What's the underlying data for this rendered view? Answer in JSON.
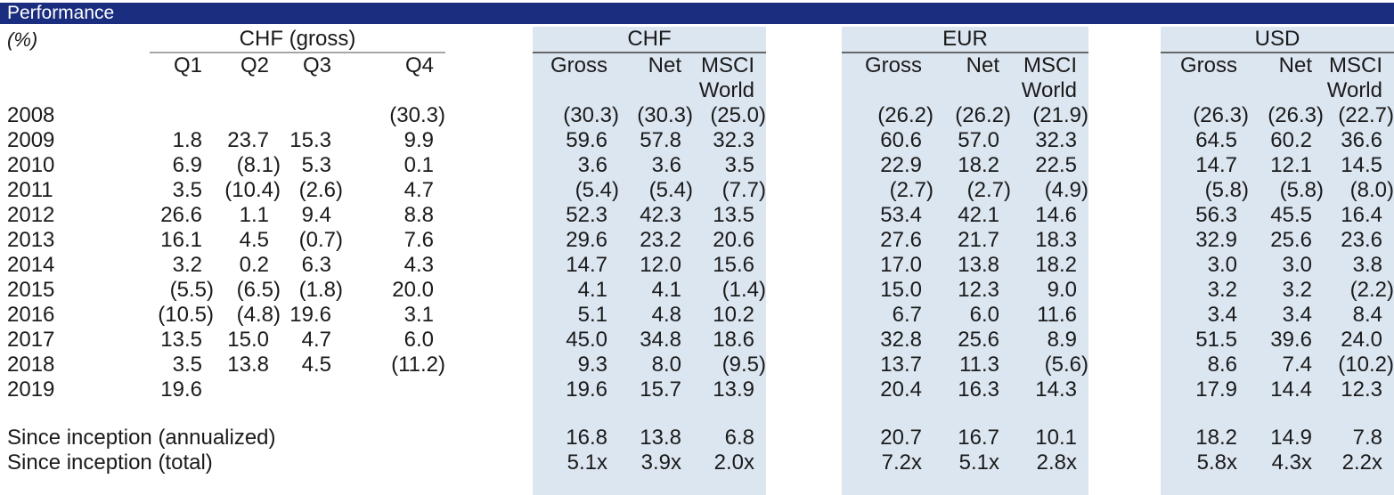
{
  "header": {
    "title": "Performance"
  },
  "unit_label": "(%)",
  "colors": {
    "header_bar": "#1b2d7f",
    "block_fill": "#dce6f1",
    "text": "#1a1a1a"
  },
  "quarterly": {
    "title": "CHF (gross)",
    "columns": [
      "Q1",
      "Q2",
      "Q3",
      "Q4"
    ],
    "rows": [
      {
        "label": "2008",
        "values": [
          "",
          "",
          "",
          "(30.3)"
        ]
      },
      {
        "label": "2009",
        "values": [
          "1.8",
          "23.7",
          "15.3",
          "9.9"
        ]
      },
      {
        "label": "2010",
        "values": [
          "6.9",
          "(8.1)",
          "5.3",
          "0.1"
        ]
      },
      {
        "label": "2011",
        "values": [
          "3.5",
          "(10.4)",
          "(2.6)",
          "4.7"
        ]
      },
      {
        "label": "2012",
        "values": [
          "26.6",
          "1.1",
          "9.4",
          "8.8"
        ]
      },
      {
        "label": "2013",
        "values": [
          "16.1",
          "4.5",
          "(0.7)",
          "7.6"
        ]
      },
      {
        "label": "2014",
        "values": [
          "3.2",
          "0.2",
          "6.3",
          "4.3"
        ]
      },
      {
        "label": "2015",
        "values": [
          "(5.5)",
          "(6.5)",
          "(1.8)",
          "20.0"
        ]
      },
      {
        "label": "2016",
        "values": [
          "(10.5)",
          "(4.8)",
          "19.6",
          "3.1"
        ]
      },
      {
        "label": "2017",
        "values": [
          "13.5",
          "15.0",
          "4.7",
          "6.0"
        ]
      },
      {
        "label": "2018",
        "values": [
          "3.5",
          "13.8",
          "4.5",
          "(11.2)"
        ]
      },
      {
        "label": "2019",
        "values": [
          "19.6",
          "",
          "",
          ""
        ]
      }
    ]
  },
  "since_labels": [
    "Since inception (annualized)",
    "Since inception (total)"
  ],
  "currency_blocks": [
    {
      "title": "CHF",
      "columns": [
        "Gross",
        "Net",
        "MSCI"
      ],
      "columns_line2": [
        "",
        "",
        "World"
      ],
      "rows": [
        [
          "(30.3)",
          "(30.3)",
          "(25.0)"
        ],
        [
          "59.6",
          "57.8",
          "32.3"
        ],
        [
          "3.6",
          "3.6",
          "3.5"
        ],
        [
          "(5.4)",
          "(5.4)",
          "(7.7)"
        ],
        [
          "52.3",
          "42.3",
          "13.5"
        ],
        [
          "29.6",
          "23.2",
          "20.6"
        ],
        [
          "14.7",
          "12.0",
          "15.6"
        ],
        [
          "4.1",
          "4.1",
          "(1.4)"
        ],
        [
          "5.1",
          "4.8",
          "10.2"
        ],
        [
          "45.0",
          "34.8",
          "18.6"
        ],
        [
          "9.3",
          "8.0",
          "(9.5)"
        ],
        [
          "19.6",
          "15.7",
          "13.9"
        ]
      ],
      "since_rows": [
        [
          "16.8",
          "13.8",
          "6.8"
        ],
        [
          "5.1x",
          "3.9x",
          "2.0x"
        ]
      ]
    },
    {
      "title": "EUR",
      "columns": [
        "Gross",
        "Net",
        "MSCI"
      ],
      "columns_line2": [
        "",
        "",
        "World"
      ],
      "rows": [
        [
          "(26.2)",
          "(26.2)",
          "(21.9)"
        ],
        [
          "60.6",
          "57.0",
          "32.3"
        ],
        [
          "22.9",
          "18.2",
          "22.5"
        ],
        [
          "(2.7)",
          "(2.7)",
          "(4.9)"
        ],
        [
          "53.4",
          "42.1",
          "14.6"
        ],
        [
          "27.6",
          "21.7",
          "18.3"
        ],
        [
          "17.0",
          "13.8",
          "18.2"
        ],
        [
          "15.0",
          "12.3",
          "9.0"
        ],
        [
          "6.7",
          "6.0",
          "11.6"
        ],
        [
          "32.8",
          "25.6",
          "8.9"
        ],
        [
          "13.7",
          "11.3",
          "(5.6)"
        ],
        [
          "20.4",
          "16.3",
          "14.3"
        ]
      ],
      "since_rows": [
        [
          "20.7",
          "16.7",
          "10.1"
        ],
        [
          "7.2x",
          "5.1x",
          "2.8x"
        ]
      ]
    },
    {
      "title": "USD",
      "columns": [
        "Gross",
        "Net",
        "MSCI"
      ],
      "columns_line2": [
        "",
        "",
        "World"
      ],
      "rows": [
        [
          "(26.3)",
          "(26.3)",
          "(22.7)"
        ],
        [
          "64.5",
          "60.2",
          "36.6"
        ],
        [
          "14.7",
          "12.1",
          "14.5"
        ],
        [
          "(5.8)",
          "(5.8)",
          "(8.0)"
        ],
        [
          "56.3",
          "45.5",
          "16.4"
        ],
        [
          "32.9",
          "25.6",
          "23.6"
        ],
        [
          "3.0",
          "3.0",
          "3.8"
        ],
        [
          "3.2",
          "3.2",
          "(2.2)"
        ],
        [
          "3.4",
          "3.4",
          "8.4"
        ],
        [
          "51.5",
          "39.6",
          "24.0"
        ],
        [
          "8.6",
          "7.4",
          "(10.2)"
        ],
        [
          "17.9",
          "14.4",
          "12.3"
        ]
      ],
      "since_rows": [
        [
          "18.2",
          "14.9",
          "7.8"
        ],
        [
          "5.8x",
          "4.3x",
          "2.2x"
        ]
      ]
    }
  ]
}
